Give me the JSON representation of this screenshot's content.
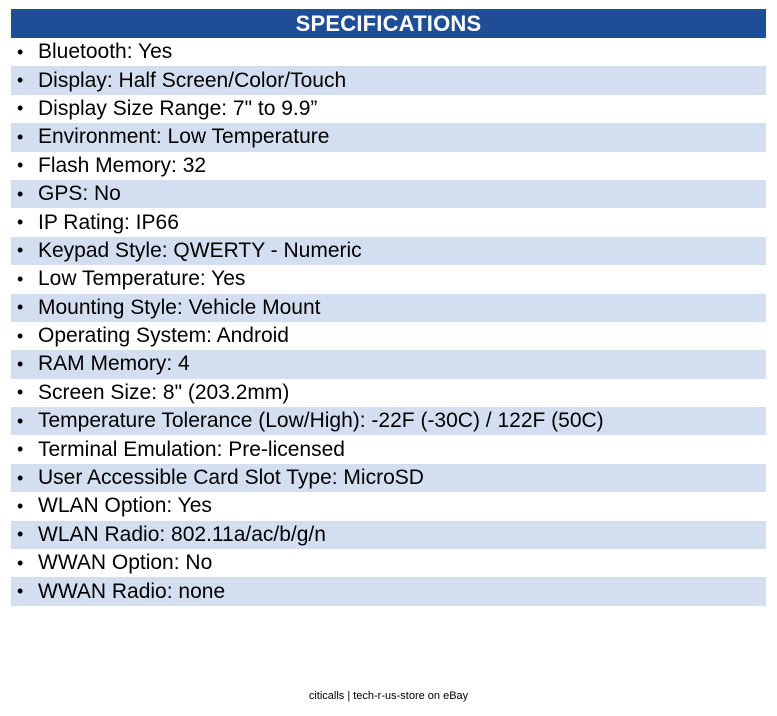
{
  "header": {
    "title": "SPECIFICATIONS"
  },
  "bullet_glyph": "•",
  "specs": [
    "Bluetooth: Yes",
    "Display: Half Screen/Color/Touch",
    "Display Size Range: 7\" to 9.9”",
    "Environment: Low Temperature",
    "Flash Memory: 32",
    "GPS: No",
    "IP Rating: IP66",
    "Keypad Style: QWERTY - Numeric",
    "Low Temperature: Yes",
    "Mounting Style: Vehicle Mount",
    "Operating System: Android",
    "RAM Memory: 4",
    "Screen Size: 8\" (203.2mm)",
    "Temperature Tolerance (Low/High): -22F (-30C) / 122F (50C)",
    "Terminal Emulation: Pre-licensed",
    "User Accessible Card Slot Type: MicroSD",
    "WLAN Option: Yes",
    "WLAN Radio: 802.11a/ac/b/g/n",
    "WWAN Option: No",
    "WWAN Radio: none"
  ],
  "footer": {
    "text": "citicalls | tech-r-us-store on eBay"
  },
  "colors": {
    "header_bg": "#1f4e97",
    "stripe": "#d3dff0"
  }
}
